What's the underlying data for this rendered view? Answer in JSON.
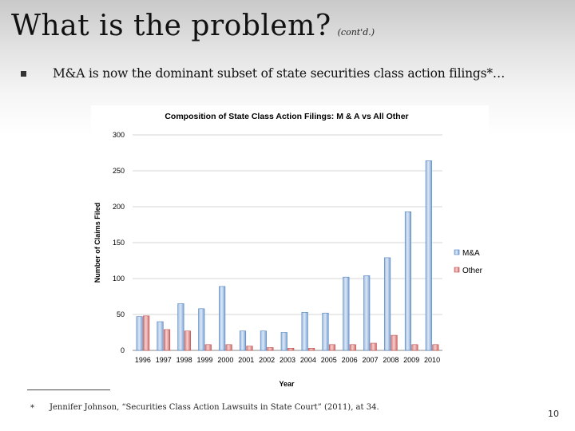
{
  "slide": {
    "title": "What is the problem?",
    "title_note": "(cont'd.)",
    "bullet": "M&A is now the dominant subset of state securities class action filings*…",
    "footnote_mark": "*",
    "footnote": "Jennifer Johnson, “Securities Class Action Lawsuits in State Court” (2011), at 34.",
    "page_number": "10"
  },
  "chart_data": {
    "type": "bar",
    "title": "Composition of State Class Action Filings: M & A vs All Other",
    "xlabel": "Year",
    "ylabel": "Number of Claims Filed",
    "ylim": [
      0,
      300
    ],
    "yticks": [
      "0",
      "50",
      "100",
      "150",
      "200",
      "250",
      "300"
    ],
    "grid": true,
    "legend_position": "right",
    "categories": [
      "1996",
      "1997",
      "1998",
      "1999",
      "2000",
      "2001",
      "2002",
      "2003",
      "2004",
      "2005",
      "2006",
      "2007",
      "2008",
      "2009",
      "2010"
    ],
    "series": [
      {
        "name": "M&A",
        "color": "#4f81bd",
        "values": [
          47,
          40,
          65,
          58,
          89,
          27,
          27,
          25,
          53,
          52,
          102,
          104,
          129,
          193,
          264
        ]
      },
      {
        "name": "Other",
        "color": "#c0504d",
        "values": [
          48,
          29,
          27,
          8,
          8,
          6,
          4,
          3,
          3,
          8,
          8,
          10,
          21,
          8,
          8
        ]
      }
    ]
  }
}
